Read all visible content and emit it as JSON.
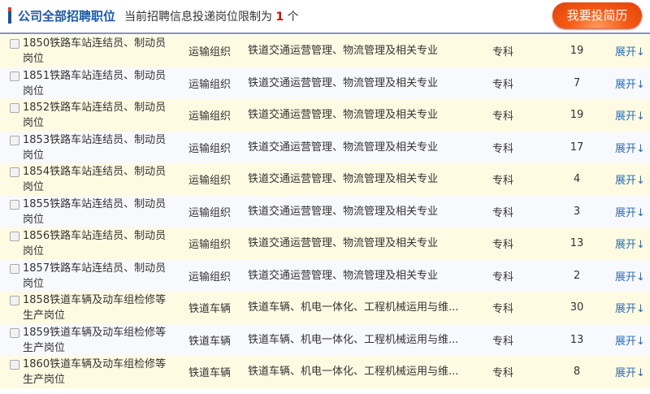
{
  "header": {
    "title": "公司全部招聘职位",
    "limit_prefix": "当前招聘信息投递岗位限制为",
    "limit_value": "1",
    "limit_suffix": "个",
    "apply_button": "我要投简历"
  },
  "colors": {
    "accent": "#1c5aa8",
    "button": "#f55a14",
    "row_odd": "#fffbe3",
    "row_even": "#f8f9fc",
    "link": "#2a6db8"
  },
  "rows": [
    {
      "name": "1850铁路车站连结员、制动员岗位",
      "category": "运输组织",
      "major": "铁道交通运营管理、物流管理及相关专业",
      "education": "专科",
      "count": "19",
      "expand": "展开↓"
    },
    {
      "name": "1851铁路车站连结员、制动员岗位",
      "category": "运输组织",
      "major": "铁道交通运营管理、物流管理及相关专业",
      "education": "专科",
      "count": "7",
      "expand": "展开↓"
    },
    {
      "name": "1852铁路车站连结员、制动员岗位",
      "category": "运输组织",
      "major": "铁道交通运营管理、物流管理及相关专业",
      "education": "专科",
      "count": "19",
      "expand": "展开↓"
    },
    {
      "name": "1853铁路车站连结员、制动员岗位",
      "category": "运输组织",
      "major": "铁道交通运营管理、物流管理及相关专业",
      "education": "专科",
      "count": "17",
      "expand": "展开↓"
    },
    {
      "name": "1854铁路车站连结员、制动员岗位",
      "category": "运输组织",
      "major": "铁道交通运营管理、物流管理及相关专业",
      "education": "专科",
      "count": "4",
      "expand": "展开↓"
    },
    {
      "name": "1855铁路车站连结员、制动员岗位",
      "category": "运输组织",
      "major": "铁道交通运营管理、物流管理及相关专业",
      "education": "专科",
      "count": "3",
      "expand": "展开↓"
    },
    {
      "name": "1856铁路车站连结员、制动员岗位",
      "category": "运输组织",
      "major": "铁道交通运营管理、物流管理及相关专业",
      "education": "专科",
      "count": "13",
      "expand": "展开↓"
    },
    {
      "name": "1857铁路车站连结员、制动员岗位",
      "category": "运输组织",
      "major": "铁道交通运营管理、物流管理及相关专业",
      "education": "专科",
      "count": "2",
      "expand": "展开↓"
    },
    {
      "name": "1858铁道车辆及动车组检修等生产岗位",
      "category": "铁道车辆",
      "major": "铁道车辆、机电一体化、工程机械运用与维...",
      "education": "专科",
      "count": "30",
      "expand": "展开↓"
    },
    {
      "name": "1859铁道车辆及动车组检修等生产岗位",
      "category": "铁道车辆",
      "major": "铁道车辆、机电一体化、工程机械运用与维...",
      "education": "专科",
      "count": "13",
      "expand": "展开↓"
    },
    {
      "name": "1860铁道车辆及动车组检修等生产岗位",
      "category": "铁道车辆",
      "major": "铁道车辆、机电一体化、工程机械运用与维...",
      "education": "专科",
      "count": "8",
      "expand": "展开↓"
    }
  ]
}
